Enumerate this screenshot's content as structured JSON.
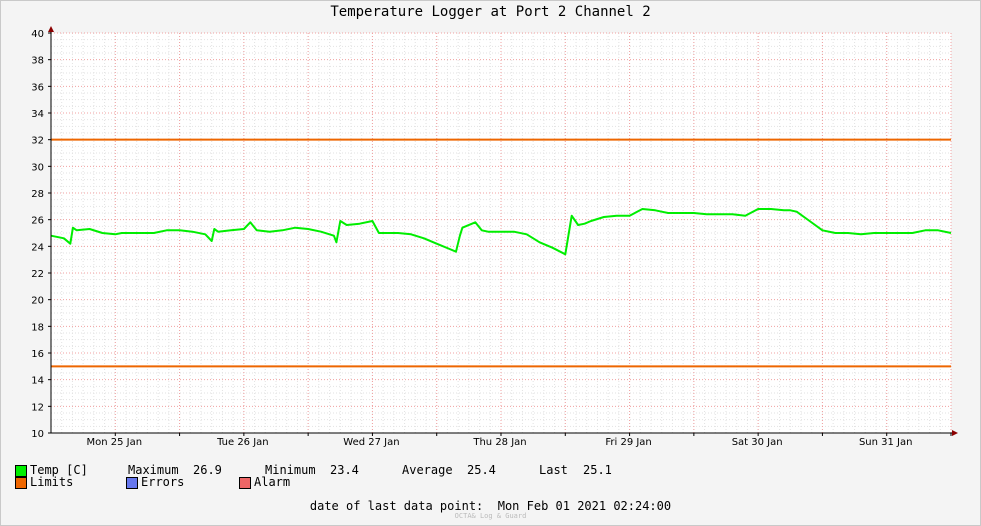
{
  "chart_data": {
    "type": "line",
    "title": "Temperature Logger at Port 2 Channel 2",
    "xlabel": "",
    "ylabel": "",
    "ylim": [
      10,
      40
    ],
    "yticks": [
      10,
      12,
      14,
      16,
      18,
      20,
      22,
      24,
      26,
      28,
      30,
      32,
      34,
      36,
      38,
      40
    ],
    "xlim": [
      0,
      7.0
    ],
    "xtick_labels": [
      "Mon 25 Jan",
      "Tue 26 Jan",
      "Wed 27 Jan",
      "Thu 28 Jan",
      "Fri 29 Jan",
      "Sat 30 Jan",
      "Sun 31 Jan"
    ],
    "grid": true,
    "limits": {
      "upper": 32,
      "lower": 15
    },
    "series": [
      {
        "name": "Temp [C]",
        "color": "#00ee00",
        "x": [
          0,
          0.1,
          0.15,
          0.17,
          0.2,
          0.3,
          0.4,
          0.5,
          0.55,
          0.6,
          0.7,
          0.8,
          0.9,
          1.0,
          1.1,
          1.2,
          1.25,
          1.27,
          1.3,
          1.4,
          1.5,
          1.55,
          1.6,
          1.7,
          1.8,
          1.9,
          2.0,
          2.1,
          2.2,
          2.22,
          2.25,
          2.3,
          2.4,
          2.5,
          2.55,
          2.6,
          2.7,
          2.8,
          2.9,
          3.0,
          3.1,
          3.15,
          3.18,
          3.2,
          3.3,
          3.35,
          3.4,
          3.5,
          3.6,
          3.7,
          3.8,
          3.9,
          4.0,
          4.05,
          4.1,
          4.15,
          4.2,
          4.3,
          4.4,
          4.5,
          4.6,
          4.7,
          4.75,
          4.8,
          4.9,
          5.0,
          5.1,
          5.2,
          5.3,
          5.4,
          5.5,
          5.6,
          5.7,
          5.75,
          5.8,
          5.9,
          6.0,
          6.1,
          6.2,
          6.3,
          6.4,
          6.5,
          6.6,
          6.7,
          6.8,
          6.9,
          7.0
        ],
        "y": [
          24.8,
          24.6,
          24.2,
          25.4,
          25.2,
          25.3,
          25.0,
          24.9,
          25.0,
          25.0,
          25.0,
          25.0,
          25.2,
          25.2,
          25.1,
          24.9,
          24.4,
          25.3,
          25.1,
          25.2,
          25.3,
          25.8,
          25.2,
          25.1,
          25.2,
          25.4,
          25.3,
          25.1,
          24.8,
          24.3,
          25.9,
          25.6,
          25.7,
          25.9,
          25.0,
          25.0,
          25.0,
          24.9,
          24.6,
          24.2,
          23.8,
          23.6,
          24.8,
          25.4,
          25.8,
          25.2,
          25.1,
          25.1,
          25.1,
          24.9,
          24.3,
          23.9,
          23.4,
          26.3,
          25.6,
          25.7,
          25.9,
          26.2,
          26.3,
          26.3,
          26.8,
          26.7,
          26.6,
          26.5,
          26.5,
          26.5,
          26.4,
          26.4,
          26.4,
          26.3,
          26.8,
          26.8,
          26.7,
          26.7,
          26.6,
          25.9,
          25.2,
          25.0,
          25.0,
          24.9,
          25.0,
          25.0,
          25.0,
          25.0,
          25.2,
          25.2,
          25.0
        ]
      }
    ]
  },
  "legend": {
    "temp_label": "Temp [C]",
    "maximum_label": "Maximum",
    "maximum_value": "26.9",
    "minimum_label": "Minimum",
    "minimum_value": "23.4",
    "average_label": "Average",
    "average_value": "25.4",
    "last_label": "Last",
    "last_value": "25.1",
    "limits_label": "Limits",
    "errors_label": "Errors",
    "alarm_label": "Alarm",
    "colors": {
      "temp": "#00ee00",
      "limits": "#ee6600",
      "errors": "#6677ee",
      "alarm": "#ee6666"
    }
  },
  "footer": {
    "last_point_label": "date of last data point:",
    "last_point_value": "Mon Feb 01 2021 02:24:00",
    "credit": "OCTA& Log & Guard"
  }
}
